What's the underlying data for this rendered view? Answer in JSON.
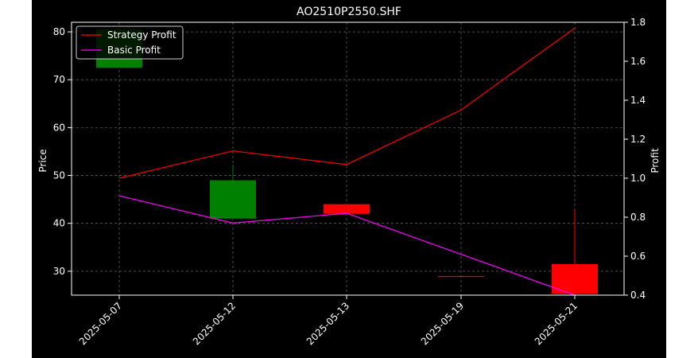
{
  "chart_data": {
    "type": "candlestick",
    "title": "AO2510P2550.SHF",
    "xlabel": "",
    "ylabel_left": "Price",
    "ylabel_right": "Profit",
    "categories": [
      "2025-05-07",
      "2025-05-12",
      "2025-05-13",
      "2025-05-19",
      "2025-05-21"
    ],
    "ylim_left": [
      25,
      82
    ],
    "yticks_left": [
      "30",
      "40",
      "50",
      "60",
      "70",
      "80"
    ],
    "ylim_right": [
      0.4,
      1.8
    ],
    "yticks_right": [
      "0.4",
      "0.6",
      "0.8",
      "1.0",
      "1.2",
      "1.4",
      "1.6",
      "1.8"
    ],
    "grid": true,
    "legend_position": "top-left",
    "candles": [
      {
        "date": "2025-05-07",
        "open": 72.5,
        "close": 80.5,
        "high": 80.5,
        "low": 72.5,
        "color": "#008000"
      },
      {
        "date": "2025-05-12",
        "open": 41.0,
        "close": 49.0,
        "high": 52.3,
        "low": 41.0,
        "color": "#008000"
      },
      {
        "date": "2025-05-13",
        "open": 44.0,
        "close": 42.0,
        "high": 44.0,
        "low": 42.0,
        "color": "#ff0000"
      },
      {
        "date": "2025-05-19",
        "open": 29.0,
        "close": 29.0,
        "high": 29.0,
        "low": 29.0,
        "color": "#ff0000"
      },
      {
        "date": "2025-05-21",
        "open": 31.5,
        "close": 25.3,
        "high": 43.0,
        "low": 25.3,
        "color": "#ff0000"
      }
    ],
    "series": [
      {
        "name": "Strategy Profit",
        "axis": "right",
        "color": "#ff0000",
        "values": [
          1.0,
          1.14,
          1.07,
          1.35,
          1.77
        ]
      },
      {
        "name": "Basic Profit",
        "axis": "right",
        "color": "#ff00ff",
        "values": [
          0.91,
          0.77,
          0.82,
          0.61,
          0.4
        ]
      }
    ]
  },
  "colors": {
    "figure_background": "#000000",
    "axes_background": "#000000",
    "axis_line": "#ffffff",
    "grid": "#808080",
    "text": "#ffffff"
  }
}
